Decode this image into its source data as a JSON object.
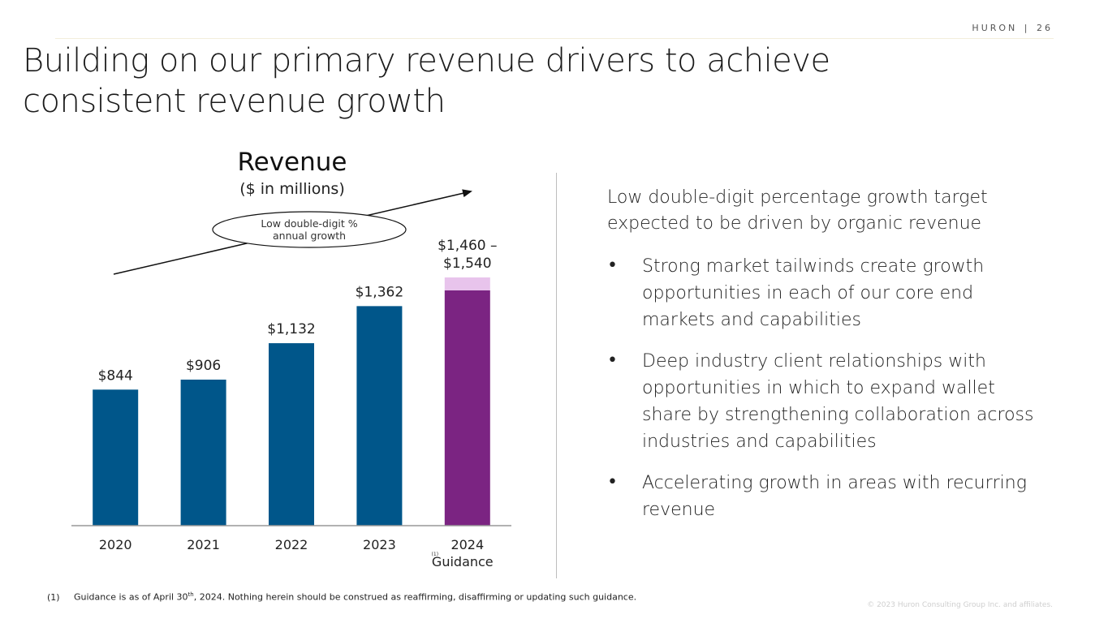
{
  "header": {
    "brand": "HURON",
    "separator": "|",
    "page_number": "26"
  },
  "title": {
    "line1": "Building on our primary revenue drivers to achieve",
    "line2": "consistent revenue growth"
  },
  "chart_data": {
    "type": "bar",
    "title": "Revenue",
    "subtitle": "($ in millions)",
    "categories": [
      "2020",
      "2021",
      "2022",
      "2023",
      "2024"
    ],
    "category_sublabel": {
      "2024": "Guidance"
    },
    "footnote_marker": "(1)",
    "values": [
      844,
      906,
      1132,
      1362,
      1460
    ],
    "range_high": 1540,
    "data_labels": [
      "$844",
      "$906",
      "$1,132",
      "$1,362",
      "$1,460 –\n$1,540"
    ],
    "bar_colors": [
      "#00568a",
      "#00568a",
      "#00568a",
      "#00568a",
      "#7b2482"
    ],
    "range_color": "#e8c4ec",
    "annotation": {
      "text": "Low double-digit  %\nannual  growth",
      "type": "arrow"
    },
    "ylim": [
      0,
      1540
    ],
    "xlabel": "",
    "ylabel": "",
    "grid": false,
    "legend": "none"
  },
  "right_panel": {
    "intro": "Low double-digit  percentage  growth target expected to be driven by organic revenue",
    "bullet_symbol": "•",
    "bullets": [
      "Strong market tailwinds  create growth opportunities  in each of our core end markets and capabilities",
      "Deep industry  client  relationships  with opportunities  in which  to expand  wallet share by strengthening  collaboration across industries  and capabilities",
      "Accelerating  growth in areas with recurring  revenue"
    ]
  },
  "footnote": {
    "number": "(1)",
    "text_before": "Guidance  is as of April 30",
    "superscript": "th",
    "text_after": ", 2024. Nothing herein should  be construed as reaffirming, disaffirming  or updating  such guidance."
  },
  "copyright": "© 2023 Huron Consulting  Group Inc. and affiliates."
}
